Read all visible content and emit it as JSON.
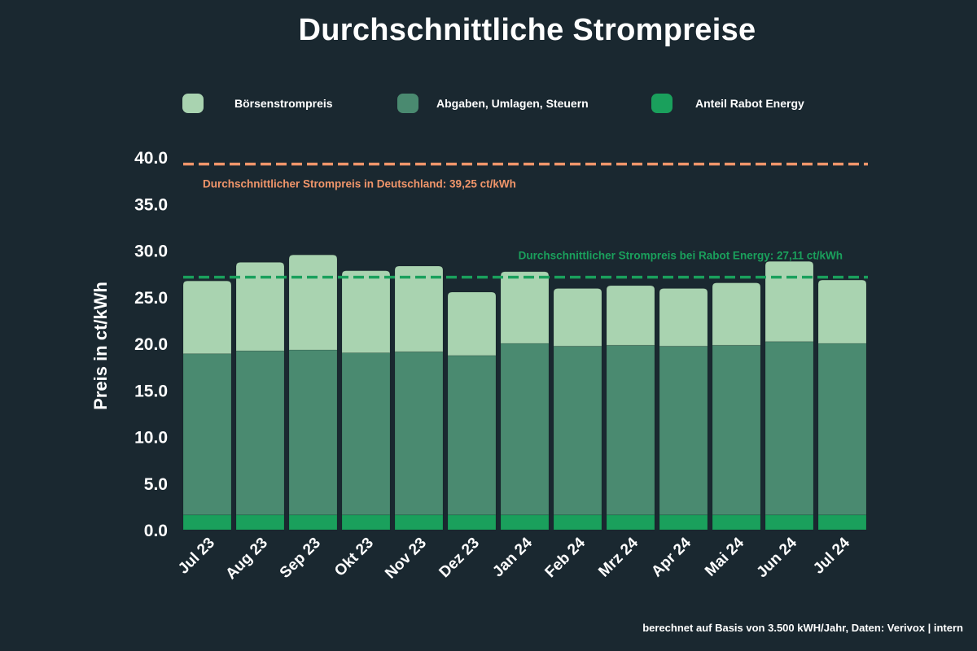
{
  "chart_data": {
    "type": "bar",
    "stacked": true,
    "title": "Durchschnittliche Strompreise",
    "xlabel": "",
    "ylabel": "Preis in ct/kWh",
    "ylim": [
      0,
      40
    ],
    "yticks": [
      "0.0",
      "5.0",
      "10.0",
      "15.0",
      "20.0",
      "25.0",
      "30.0",
      "35.0",
      "40.0"
    ],
    "grid": false,
    "legend_position": "top",
    "categories": [
      "Jul 23",
      "Aug 23",
      "Sep 23",
      "Okt 23",
      "Nov 23",
      "Dez 23",
      "Jan 24",
      "Feb 24",
      "Mrz 24",
      "Apr 24",
      "Mai 24",
      "Jun 24",
      "Jul 24"
    ],
    "series": [
      {
        "name": "Anteil Rabot Energy",
        "color": "#1aa05c",
        "values": [
          1.6,
          1.6,
          1.6,
          1.6,
          1.6,
          1.6,
          1.6,
          1.6,
          1.6,
          1.6,
          1.6,
          1.6,
          1.6
        ]
      },
      {
        "name": "Abgaben, Umlagen, Steuern",
        "color": "#4a8a70",
        "values": [
          17.3,
          17.6,
          17.7,
          17.4,
          17.5,
          17.1,
          18.4,
          18.1,
          18.2,
          18.1,
          18.2,
          18.6,
          18.4
        ]
      },
      {
        "name": "Börsenstrompreis",
        "color": "#a9d3b0",
        "values": [
          7.8,
          9.5,
          10.2,
          8.8,
          9.2,
          6.8,
          7.7,
          6.2,
          6.4,
          6.2,
          6.7,
          8.6,
          6.8
        ]
      }
    ],
    "legend_order": [
      "Börsenstrompreis",
      "Abgaben, Umlagen, Steuern",
      "Anteil Rabot Energy"
    ],
    "reference_lines": [
      {
        "value": 39.25,
        "label": "Durchschnittlicher Strompreis in Deutschland: 39,25 ct/kWh",
        "color": "#f0956a",
        "style": "dashed"
      },
      {
        "value": 27.11,
        "label": "Durchschnittlicher Strompreis bei Rabot Energy: 27,11 ct/kWh",
        "color": "#1aa05c",
        "style": "dashed"
      }
    ],
    "footnote": "berechnet auf Basis von 3.500 kWH/Jahr, Daten: Verivox | intern"
  }
}
